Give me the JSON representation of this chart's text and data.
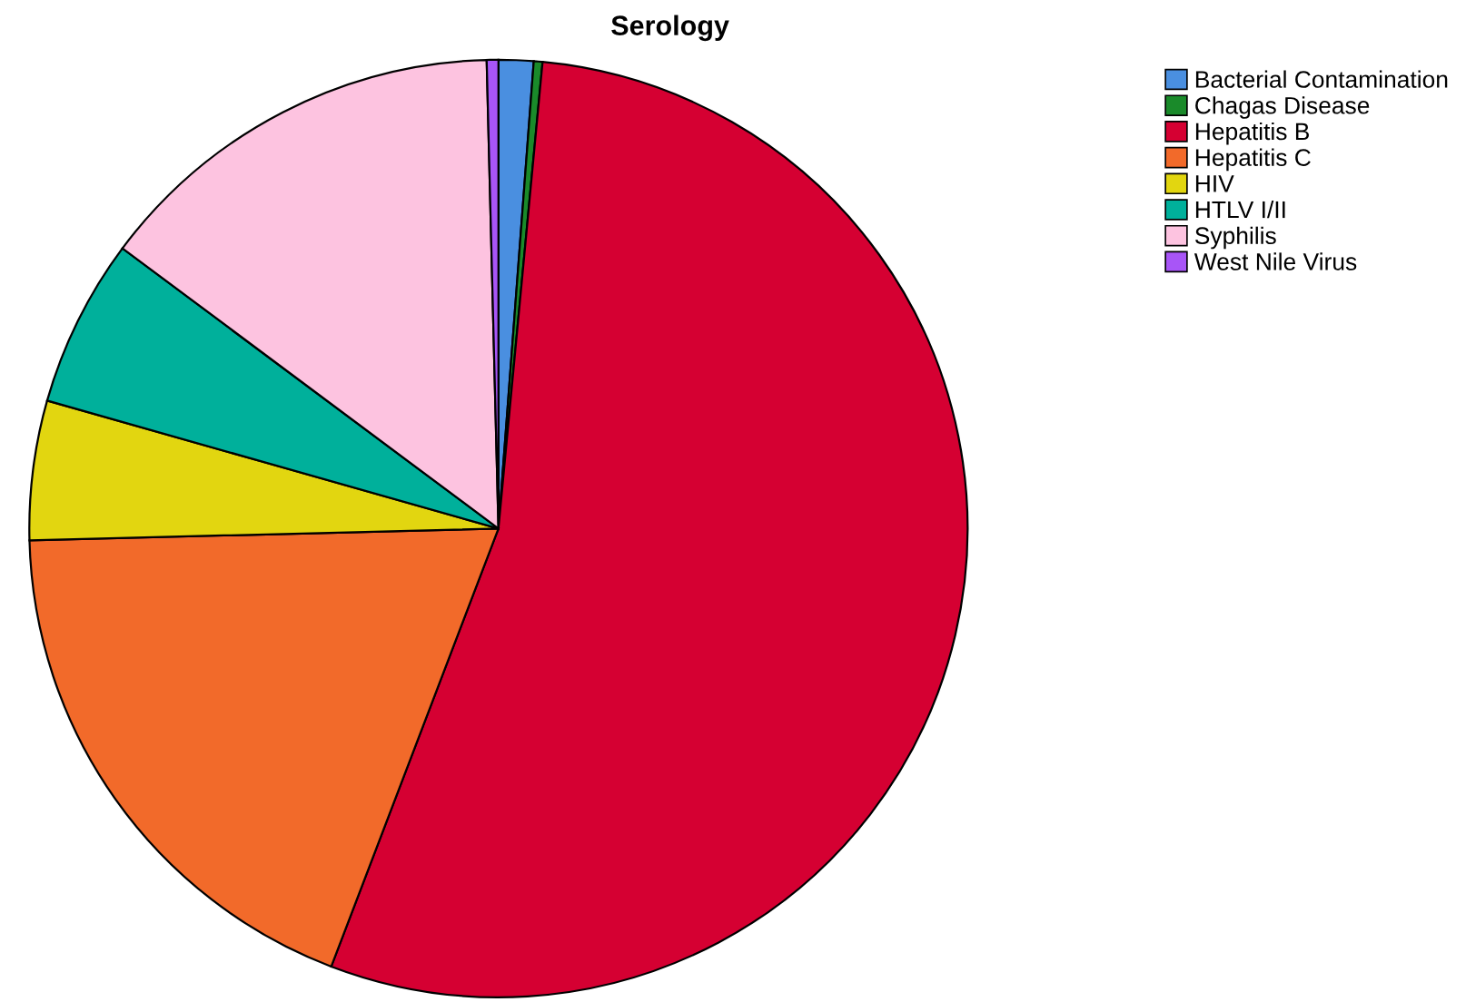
{
  "chart_data": {
    "type": "pie",
    "title": "Serology",
    "categories": [
      "Bacterial Contamination",
      "Chagas Disease",
      "Hepatitis B",
      "Hepatitis C",
      "HIV",
      "HTLV I/II",
      "Syphilis",
      "West Nile Virus"
    ],
    "values": [
      1.2,
      0.3,
      54.3,
      18.8,
      4.8,
      5.8,
      14.4,
      0.4
    ],
    "colors": [
      "#4a8fe0",
      "#1a8a2a",
      "#d50032",
      "#f26a2a",
      "#e2d610",
      "#00b09b",
      "#fdc3e0",
      "#a855f7"
    ],
    "legend": "top right"
  }
}
